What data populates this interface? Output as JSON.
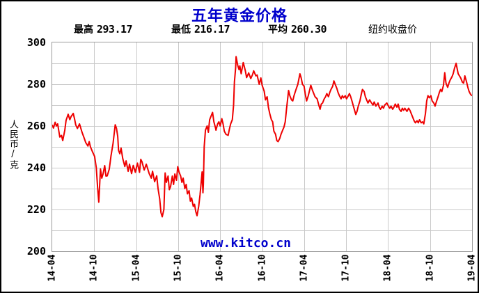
{
  "title": "五年黄金价格",
  "colors": {
    "title_blue": "#0000cc",
    "watermark_blue": "#0000cc",
    "line_red": "#ee0000",
    "grid_gray": "#c9c9c9",
    "plot_border_gray": "#9a9a9a",
    "text_black": "#000000",
    "background": "#ffffff"
  },
  "stats": {
    "high_label": "最高",
    "high_value": "293.17",
    "low_label": "最低",
    "low_value": "216.17",
    "avg_label": "平均",
    "avg_value": "260.30",
    "note": "纽约收盘价"
  },
  "axis": {
    "y_title": "人民币/克"
  },
  "watermark": "www.kitco.cn",
  "chart_data": {
    "type": "line",
    "title": "五年黄金价格",
    "xlabel": "",
    "ylabel": "人民币/克",
    "ylim": [
      200,
      300
    ],
    "y_major_ticks": [
      300,
      280,
      260,
      240,
      220,
      200
    ],
    "y_grid_step": 10,
    "grid": true,
    "legend": "none",
    "x_ticks": [
      "14-04",
      "14-10",
      "15-04",
      "15-10",
      "16-04",
      "16-10",
      "17-04",
      "17-10",
      "18-04",
      "18-10",
      "19-04"
    ],
    "stats": {
      "max": 293.17,
      "min": 216.17,
      "avg": 260.3
    },
    "series": [
      {
        "name": "纽约收盘价",
        "color": "#ee0000",
        "points": [
          [
            0.0,
            260.5
          ],
          [
            0.003,
            259.0
          ],
          [
            0.007,
            261.8
          ],
          [
            0.01,
            260.0
          ],
          [
            0.013,
            261.0
          ],
          [
            0.018,
            254.7
          ],
          [
            0.022,
            255.5
          ],
          [
            0.025,
            253.0
          ],
          [
            0.03,
            258.0
          ],
          [
            0.033,
            262.7
          ],
          [
            0.038,
            265.6
          ],
          [
            0.042,
            263.0
          ],
          [
            0.045,
            264.5
          ],
          [
            0.05,
            266.0
          ],
          [
            0.053,
            263.5
          ],
          [
            0.056,
            260.5
          ],
          [
            0.06,
            258.8
          ],
          [
            0.065,
            261.0
          ],
          [
            0.068,
            259.0
          ],
          [
            0.071,
            257.0
          ],
          [
            0.076,
            254.3
          ],
          [
            0.08,
            252.0
          ],
          [
            0.085,
            250.4
          ],
          [
            0.088,
            252.5
          ],
          [
            0.091,
            250.0
          ],
          [
            0.096,
            247.6
          ],
          [
            0.101,
            245.4
          ],
          [
            0.105,
            240.0
          ],
          [
            0.108,
            231.0
          ],
          [
            0.111,
            223.5
          ],
          [
            0.115,
            239.4
          ],
          [
            0.118,
            235.0
          ],
          [
            0.121,
            237.0
          ],
          [
            0.125,
            241.0
          ],
          [
            0.128,
            236.0
          ],
          [
            0.131,
            236.1
          ],
          [
            0.136,
            239.4
          ],
          [
            0.14,
            245.6
          ],
          [
            0.145,
            251.7
          ],
          [
            0.15,
            260.6
          ],
          [
            0.153,
            258.9
          ],
          [
            0.156,
            255.0
          ],
          [
            0.158,
            248.3
          ],
          [
            0.161,
            246.7
          ],
          [
            0.164,
            249.4
          ],
          [
            0.168,
            244.4
          ],
          [
            0.173,
            240.6
          ],
          [
            0.176,
            243.3
          ],
          [
            0.181,
            238.3
          ],
          [
            0.184,
            241.7
          ],
          [
            0.189,
            237.2
          ],
          [
            0.193,
            241.1
          ],
          [
            0.198,
            237.8
          ],
          [
            0.203,
            242.2
          ],
          [
            0.208,
            237.8
          ],
          [
            0.211,
            244.0
          ],
          [
            0.214,
            242.8
          ],
          [
            0.219,
            238.9
          ],
          [
            0.224,
            241.7
          ],
          [
            0.231,
            237.2
          ],
          [
            0.236,
            235.0
          ],
          [
            0.239,
            238.3
          ],
          [
            0.244,
            233.3
          ],
          [
            0.249,
            236.1
          ],
          [
            0.252,
            230.0
          ],
          [
            0.256,
            225.0
          ],
          [
            0.259,
            218.5
          ],
          [
            0.262,
            216.5
          ],
          [
            0.266,
            220.0
          ],
          [
            0.269,
            237.5
          ],
          [
            0.272,
            233.0
          ],
          [
            0.276,
            236.0
          ],
          [
            0.279,
            229.5
          ],
          [
            0.282,
            231.0
          ],
          [
            0.286,
            236.0
          ],
          [
            0.289,
            232.0
          ],
          [
            0.292,
            237.0
          ],
          [
            0.296,
            234.0
          ],
          [
            0.299,
            240.5
          ],
          [
            0.302,
            238.0
          ],
          [
            0.306,
            236.0
          ],
          [
            0.309,
            233.0
          ],
          [
            0.312,
            235.0
          ],
          [
            0.316,
            230.0
          ],
          [
            0.319,
            232.0
          ],
          [
            0.322,
            227.5
          ],
          [
            0.326,
            229.0
          ],
          [
            0.329,
            224.0
          ],
          [
            0.332,
            225.5
          ],
          [
            0.336,
            221.5
          ],
          [
            0.339,
            222.5
          ],
          [
            0.342,
            219.0
          ],
          [
            0.345,
            217.0
          ],
          [
            0.349,
            221.5
          ],
          [
            0.352,
            227.0
          ],
          [
            0.355,
            233.5
          ],
          [
            0.357,
            238.0
          ],
          [
            0.359,
            228.0
          ],
          [
            0.36,
            232.0
          ],
          [
            0.362,
            250.0
          ],
          [
            0.365,
            258.0
          ],
          [
            0.369,
            260.0
          ],
          [
            0.372,
            257.0
          ],
          [
            0.375,
            263.0
          ],
          [
            0.379,
            265.0
          ],
          [
            0.382,
            266.5
          ],
          [
            0.385,
            262.0
          ],
          [
            0.389,
            259.0
          ],
          [
            0.39,
            258.0
          ],
          [
            0.394,
            261.0
          ],
          [
            0.397,
            262.0
          ],
          [
            0.4,
            260.0
          ],
          [
            0.404,
            263.5
          ],
          [
            0.407,
            261.0
          ],
          [
            0.41,
            257.5
          ],
          [
            0.414,
            256.0
          ],
          [
            0.419,
            255.5
          ],
          [
            0.422,
            258.5
          ],
          [
            0.425,
            261.0
          ],
          [
            0.429,
            263.0
          ],
          [
            0.432,
            270.0
          ],
          [
            0.434,
            281.0
          ],
          [
            0.437,
            288.0
          ],
          [
            0.438,
            293.2
          ],
          [
            0.442,
            289.0
          ],
          [
            0.445,
            287.0
          ],
          [
            0.447,
            288.8
          ],
          [
            0.45,
            285.0
          ],
          [
            0.455,
            290.4
          ],
          [
            0.46,
            286.4
          ],
          [
            0.463,
            283.2
          ],
          [
            0.468,
            285.4
          ],
          [
            0.473,
            282.7
          ],
          [
            0.477,
            284.5
          ],
          [
            0.48,
            286.4
          ],
          [
            0.485,
            284.0
          ],
          [
            0.488,
            284.4
          ],
          [
            0.493,
            280.0
          ],
          [
            0.497,
            283.0
          ],
          [
            0.5,
            279.5
          ],
          [
            0.505,
            276.6
          ],
          [
            0.508,
            272.5
          ],
          [
            0.512,
            274.0
          ],
          [
            0.515,
            269.0
          ],
          [
            0.518,
            266.0
          ],
          [
            0.522,
            263.0
          ],
          [
            0.525,
            262.0
          ],
          [
            0.528,
            257.5
          ],
          [
            0.532,
            256.0
          ],
          [
            0.535,
            253.0
          ],
          [
            0.538,
            252.5
          ],
          [
            0.542,
            254.0
          ],
          [
            0.545,
            256.0
          ],
          [
            0.548,
            257.5
          ],
          [
            0.552,
            259.5
          ],
          [
            0.555,
            262.0
          ],
          [
            0.558,
            268.0
          ],
          [
            0.563,
            277.0
          ],
          [
            0.566,
            274.5
          ],
          [
            0.57,
            272.5
          ],
          [
            0.573,
            272.0
          ],
          [
            0.576,
            274.5
          ],
          [
            0.58,
            277.0
          ],
          [
            0.585,
            280.0
          ],
          [
            0.59,
            285.0
          ],
          [
            0.593,
            283.0
          ],
          [
            0.596,
            280.0
          ],
          [
            0.6,
            279.0
          ],
          [
            0.603,
            275.0
          ],
          [
            0.606,
            272.0
          ],
          [
            0.61,
            274.5
          ],
          [
            0.613,
            277.0
          ],
          [
            0.616,
            279.5
          ],
          [
            0.62,
            277.0
          ],
          [
            0.623,
            275.5
          ],
          [
            0.626,
            274.0
          ],
          [
            0.631,
            273.0
          ],
          [
            0.635,
            270.0
          ],
          [
            0.638,
            268.0
          ],
          [
            0.641,
            270.5
          ],
          [
            0.644,
            271.0
          ],
          [
            0.648,
            273.0
          ],
          [
            0.651,
            274.0
          ],
          [
            0.654,
            275.5
          ],
          [
            0.658,
            274.0
          ],
          [
            0.661,
            276.0
          ],
          [
            0.664,
            277.5
          ],
          [
            0.668,
            279.0
          ],
          [
            0.671,
            281.6
          ],
          [
            0.674,
            280.0
          ],
          [
            0.678,
            278.0
          ],
          [
            0.681,
            276.0
          ],
          [
            0.684,
            274.5
          ],
          [
            0.688,
            273.0
          ],
          [
            0.691,
            274.5
          ],
          [
            0.694,
            273.5
          ],
          [
            0.698,
            274.5
          ],
          [
            0.701,
            273.0
          ],
          [
            0.704,
            274.0
          ],
          [
            0.708,
            275.5
          ],
          [
            0.711,
            274.0
          ],
          [
            0.714,
            272.0
          ],
          [
            0.718,
            269.0
          ],
          [
            0.723,
            265.5
          ],
          [
            0.726,
            267.0
          ],
          [
            0.729,
            269.5
          ],
          [
            0.733,
            272.0
          ],
          [
            0.736,
            275.0
          ],
          [
            0.739,
            277.5
          ],
          [
            0.743,
            276.5
          ],
          [
            0.746,
            274.0
          ],
          [
            0.749,
            272.5
          ],
          [
            0.752,
            271.0
          ],
          [
            0.756,
            272.5
          ],
          [
            0.759,
            271.5
          ],
          [
            0.764,
            270.0
          ],
          [
            0.767,
            271.5
          ],
          [
            0.771,
            269.5
          ],
          [
            0.776,
            271.0
          ],
          [
            0.779,
            269.0
          ],
          [
            0.782,
            268.0
          ],
          [
            0.786,
            269.5
          ],
          [
            0.789,
            268.5
          ],
          [
            0.792,
            270.0
          ],
          [
            0.797,
            271.0
          ],
          [
            0.801,
            269.5
          ],
          [
            0.804,
            268.5
          ],
          [
            0.807,
            269.5
          ],
          [
            0.811,
            268.0
          ],
          [
            0.814,
            269.0
          ],
          [
            0.817,
            270.5
          ],
          [
            0.821,
            269.0
          ],
          [
            0.824,
            270.5
          ],
          [
            0.827,
            268.0
          ],
          [
            0.831,
            267.0
          ],
          [
            0.834,
            268.5
          ],
          [
            0.837,
            267.5
          ],
          [
            0.84,
            268.5
          ],
          [
            0.845,
            267.0
          ],
          [
            0.849,
            268.5
          ],
          [
            0.852,
            267.5
          ],
          [
            0.856,
            265.5
          ],
          [
            0.859,
            264.0
          ],
          [
            0.862,
            262.5
          ],
          [
            0.865,
            261.5
          ],
          [
            0.869,
            262.5
          ],
          [
            0.872,
            261.5
          ],
          [
            0.875,
            263.0
          ],
          [
            0.879,
            261.5
          ],
          [
            0.882,
            262.0
          ],
          [
            0.885,
            261.0
          ],
          [
            0.889,
            266.0
          ],
          [
            0.892,
            272.0
          ],
          [
            0.895,
            274.5
          ],
          [
            0.898,
            273.5
          ],
          [
            0.902,
            274.5
          ],
          [
            0.905,
            272.0
          ],
          [
            0.909,
            271.0
          ],
          [
            0.912,
            269.5
          ],
          [
            0.915,
            271.5
          ],
          [
            0.919,
            274.0
          ],
          [
            0.922,
            276.0
          ],
          [
            0.925,
            277.5
          ],
          [
            0.928,
            276.5
          ],
          [
            0.932,
            279.5
          ],
          [
            0.935,
            285.5
          ],
          [
            0.938,
            280.5
          ],
          [
            0.942,
            278.5
          ],
          [
            0.945,
            280.5
          ],
          [
            0.948,
            282.0
          ],
          [
            0.952,
            283.5
          ],
          [
            0.955,
            285.0
          ],
          [
            0.958,
            287.5
          ],
          [
            0.962,
            290.0
          ],
          [
            0.965,
            287.0
          ],
          [
            0.967,
            285.0
          ],
          [
            0.97,
            284.0
          ],
          [
            0.973,
            283.0
          ],
          [
            0.977,
            281.0
          ],
          [
            0.98,
            280.5
          ],
          [
            0.983,
            284.0
          ],
          [
            0.987,
            281.0
          ],
          [
            0.99,
            278.5
          ],
          [
            0.993,
            276.5
          ],
          [
            0.997,
            275.0
          ],
          [
            1.0,
            274.5
          ]
        ]
      }
    ]
  }
}
